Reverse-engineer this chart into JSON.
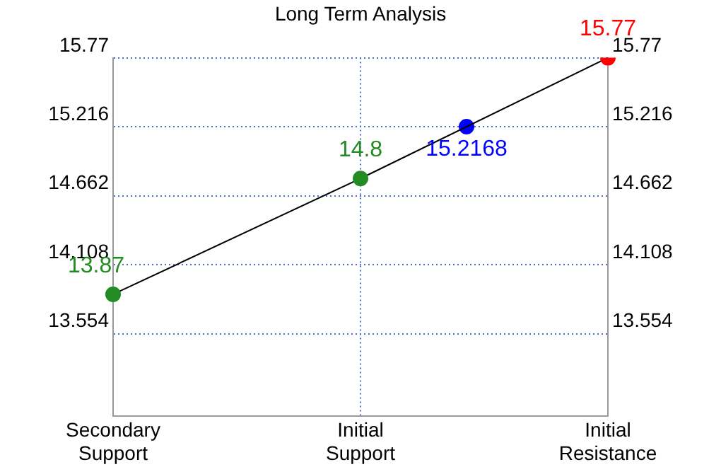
{
  "chart_data": {
    "type": "line",
    "title": "Long Term Analysis",
    "categories": [
      "Secondary Support",
      null,
      null,
      null,
      null,
      null,
      null,
      "Initial Support",
      null,
      null,
      null,
      null,
      null,
      null,
      "Initial Resistance"
    ],
    "series": [
      {
        "color": "#000000",
        "colors": [
          "#228b22",
          null,
          null,
          null,
          null,
          null,
          null,
          "#228b22",
          null,
          null,
          null,
          null,
          null,
          null,
          "#ff0000"
        ],
        "values": [
          13.87,
          null,
          null,
          null,
          null,
          null,
          null,
          14.8,
          null,
          null,
          null,
          null,
          null,
          null,
          15.77
        ]
      },
      {
        "type": "scatter",
        "color": "#0000ff",
        "values": [
          null,
          null,
          null,
          null,
          null,
          null,
          null,
          null,
          null,
          null,
          15.2168,
          null,
          null,
          null,
          null
        ]
      }
    ],
    "ylim": [
      12.892,
      15.77
    ],
    "yticks": [
      13.554,
      14.108,
      14.662,
      15.216,
      15.77
    ],
    "y2lim": [
      12.892,
      15.77
    ],
    "y2ticks": [
      13.554,
      14.108,
      14.662,
      15.216,
      15.77
    ],
    "grid": true,
    "marker": "circle",
    "line_style": "solid",
    "data_labels": true
  }
}
